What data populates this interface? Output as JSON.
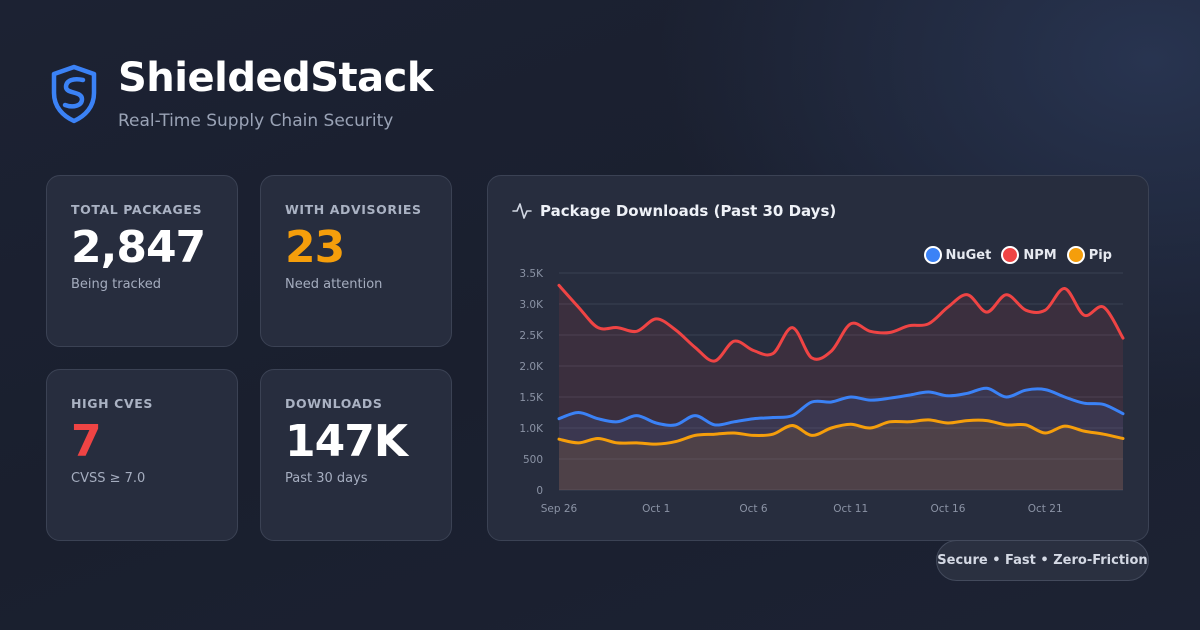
{
  "brand": {
    "title": "ShieldedStack",
    "tagline": "Real-Time Supply Chain Security",
    "logo_icon": "shield-icon",
    "accent": "#3b82f6"
  },
  "stats": [
    {
      "label": "TOTAL PACKAGES",
      "value": "2,847",
      "sub": "Being tracked",
      "color": "#ffffff"
    },
    {
      "label": "WITH ADVISORIES",
      "value": "23",
      "sub": "Need attention",
      "color": "#f59e0b"
    },
    {
      "label": "HIGH CVES",
      "value": "7",
      "sub": "CVSS ≥ 7.0",
      "color": "#ef4444"
    },
    {
      "label": "DOWNLOADS",
      "value": "147K",
      "sub": "Past 30 days",
      "color": "#ffffff"
    }
  ],
  "chart_panel": {
    "title": "Package Downloads (Past 30 Days)",
    "icon": "activity-icon"
  },
  "chart_data": {
    "type": "area",
    "title": "Package Downloads (Past 30 Days)",
    "xlabel": "",
    "ylabel": "",
    "x": [
      "Sep 26",
      "Sep 27",
      "Sep 28",
      "Sep 29",
      "Sep 30",
      "Oct 1",
      "Oct 2",
      "Oct 3",
      "Oct 4",
      "Oct 5",
      "Oct 6",
      "Oct 7",
      "Oct 8",
      "Oct 9",
      "Oct 10",
      "Oct 11",
      "Oct 12",
      "Oct 13",
      "Oct 14",
      "Oct 15",
      "Oct 16",
      "Oct 17",
      "Oct 18",
      "Oct 19",
      "Oct 20",
      "Oct 21",
      "Oct 22",
      "Oct 23",
      "Oct 24",
      "Oct 25"
    ],
    "x_tick_labels": [
      "Sep 26",
      "Oct 1",
      "Oct 6",
      "Oct 11",
      "Oct 16",
      "Oct 21"
    ],
    "y_ticks": [
      "0",
      "500",
      "1.0K",
      "1.5K",
      "2.0K",
      "2.5K",
      "3.0K",
      "3.5K"
    ],
    "ylim": [
      0,
      3500
    ],
    "grid": true,
    "legend_position": "top-right",
    "series": [
      {
        "name": "NuGet",
        "color": "#3b82f6",
        "values": [
          1150,
          1250,
          1150,
          1100,
          1200,
          1080,
          1050,
          1200,
          1050,
          1100,
          1150,
          1170,
          1200,
          1420,
          1420,
          1500,
          1450,
          1480,
          1530,
          1580,
          1520,
          1560,
          1640,
          1500,
          1610,
          1620,
          1500,
          1400,
          1380,
          1230
        ]
      },
      {
        "name": "NPM",
        "color": "#ef4444",
        "values": [
          3300,
          2950,
          2620,
          2620,
          2560,
          2760,
          2580,
          2300,
          2080,
          2400,
          2250,
          2200,
          2620,
          2130,
          2240,
          2680,
          2560,
          2540,
          2650,
          2680,
          2950,
          3150,
          2870,
          3150,
          2900,
          2900,
          3250,
          2820,
          2950,
          2450
        ]
      },
      {
        "name": "Pip",
        "color": "#f59e0b",
        "values": [
          820,
          760,
          830,
          760,
          760,
          740,
          780,
          880,
          900,
          920,
          880,
          900,
          1040,
          880,
          1000,
          1060,
          1000,
          1100,
          1100,
          1130,
          1080,
          1120,
          1120,
          1050,
          1050,
          920,
          1030,
          950,
          900,
          830
        ]
      }
    ]
  },
  "footer": {
    "text": "Secure • Fast • Zero-Friction"
  }
}
